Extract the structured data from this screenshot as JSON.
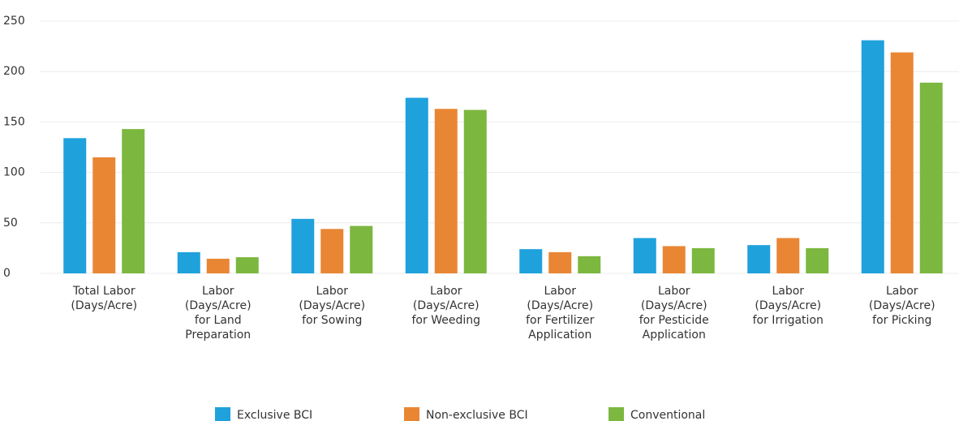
{
  "chart_data": {
    "type": "bar",
    "categories": [
      "Total Labor (Days/Acre)",
      "Labor (Days/Acre) for Land Preparation",
      "Labor (Days/Acre) for Sowing",
      "Labor (Days/Acre) for Weeding",
      "Labor (Days/Acre) for Fertilizer Application",
      "Labor (Days/Acre) for Pesticide Application",
      "Labor (Days/Acre) for Irrigation",
      "Labor (Days/Acre) for Picking"
    ],
    "series": [
      {
        "name": "Exclusive BCI",
        "color": "#1fa1dc",
        "values": [
          134,
          21,
          54,
          174,
          24,
          35,
          28,
          231
        ]
      },
      {
        "name": "Non-exclusive BCI",
        "color": "#e98634",
        "values": [
          115,
          14.5,
          44,
          163,
          21,
          27,
          35,
          219
        ]
      },
      {
        "name": "Conventional",
        "color": "#7cb73f",
        "values": [
          143,
          16,
          47,
          162,
          17,
          25,
          25,
          189
        ]
      }
    ],
    "ylim": [
      0,
      250
    ],
    "yticks": [
      0,
      50,
      100,
      150,
      200,
      250
    ],
    "grid": true,
    "legend": "bottom"
  }
}
